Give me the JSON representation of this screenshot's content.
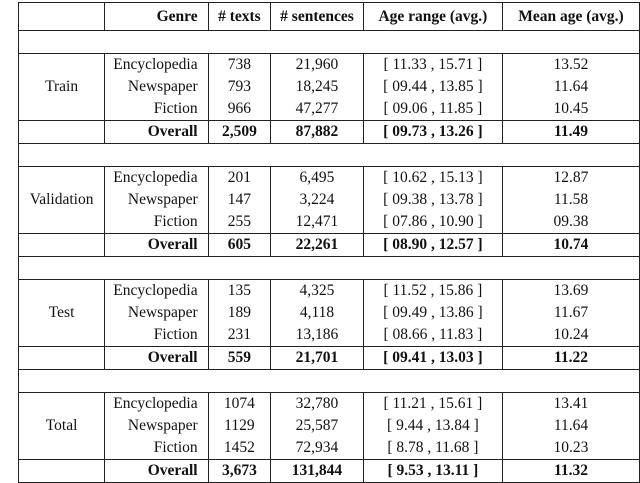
{
  "header": {
    "split": "",
    "genre": "Genre",
    "texts": "# texts",
    "sentences": "# sentences",
    "age_range": "Age range (avg.)",
    "mean_age": "Mean age (avg.)"
  },
  "blocks": [
    {
      "split": "Train",
      "rows": [
        {
          "genre": "Encyclopedia",
          "texts": "738",
          "sentences": "21,960",
          "age_range": "[ 11.33 , 15.71 ]",
          "mean_age": "13.52"
        },
        {
          "genre": "Newspaper",
          "texts": "793",
          "sentences": "18,245",
          "age_range": "[ 09.44 , 13.85 ]",
          "mean_age": "11.64"
        },
        {
          "genre": "Fiction",
          "texts": "966",
          "sentences": "47,277",
          "age_range": "[ 09.06 , 11.85 ]",
          "mean_age": "10.45"
        }
      ],
      "overall": {
        "genre": "Overall",
        "texts": "2,509",
        "sentences": "87,882",
        "age_range": "[ 09.73 , 13.26 ]",
        "mean_age": "11.49"
      }
    },
    {
      "split": "Validation",
      "rows": [
        {
          "genre": "Encyclopedia",
          "texts": "201",
          "sentences": "6,495",
          "age_range": "[ 10.62 , 15.13 ]",
          "mean_age": "12.87"
        },
        {
          "genre": "Newspaper",
          "texts": "147",
          "sentences": "3,224",
          "age_range": "[ 09.38 , 13.78 ]",
          "mean_age": "11.58"
        },
        {
          "genre": "Fiction",
          "texts": "255",
          "sentences": "12,471",
          "age_range": "[ 07.86 , 10.90 ]",
          "mean_age": "09.38"
        }
      ],
      "overall": {
        "genre": "Overall",
        "texts": "605",
        "sentences": "22,261",
        "age_range": "[ 08.90 , 12.57 ]",
        "mean_age": "10.74"
      }
    },
    {
      "split": "Test",
      "rows": [
        {
          "genre": "Encyclopedia",
          "texts": "135",
          "sentences": "4,325",
          "age_range": "[ 11.52 , 15.86 ]",
          "mean_age": "13.69"
        },
        {
          "genre": "Newspaper",
          "texts": "189",
          "sentences": "4,118",
          "age_range": "[ 09.49 , 13.86 ]",
          "mean_age": "11.67"
        },
        {
          "genre": "Fiction",
          "texts": "231",
          "sentences": "13,186",
          "age_range": "[ 08.66 , 11.83 ]",
          "mean_age": "10.24"
        }
      ],
      "overall": {
        "genre": "Overall",
        "texts": "559",
        "sentences": "21,701",
        "age_range": "[ 09.41 , 13.03 ]",
        "mean_age": "11.22"
      }
    },
    {
      "split": "Total",
      "rows": [
        {
          "genre": "Encyclopedia",
          "texts": "1074",
          "sentences": "32,780",
          "age_range": "[ 11.21 , 15.61 ]",
          "mean_age": "13.41"
        },
        {
          "genre": "Newspaper",
          "texts": "1129",
          "sentences": "25,587",
          "age_range": "[ 9.44 , 13.84 ]",
          "mean_age": "11.64"
        },
        {
          "genre": "Fiction",
          "texts": "1452",
          "sentences": "72,934",
          "age_range": "[ 8.78 , 11.68 ]",
          "mean_age": "10.23"
        }
      ],
      "overall": {
        "genre": "Overall",
        "texts": "3,673",
        "sentences": "131,844",
        "age_range": "[ 9.53 , 13.11 ]",
        "mean_age": "11.32"
      }
    }
  ]
}
